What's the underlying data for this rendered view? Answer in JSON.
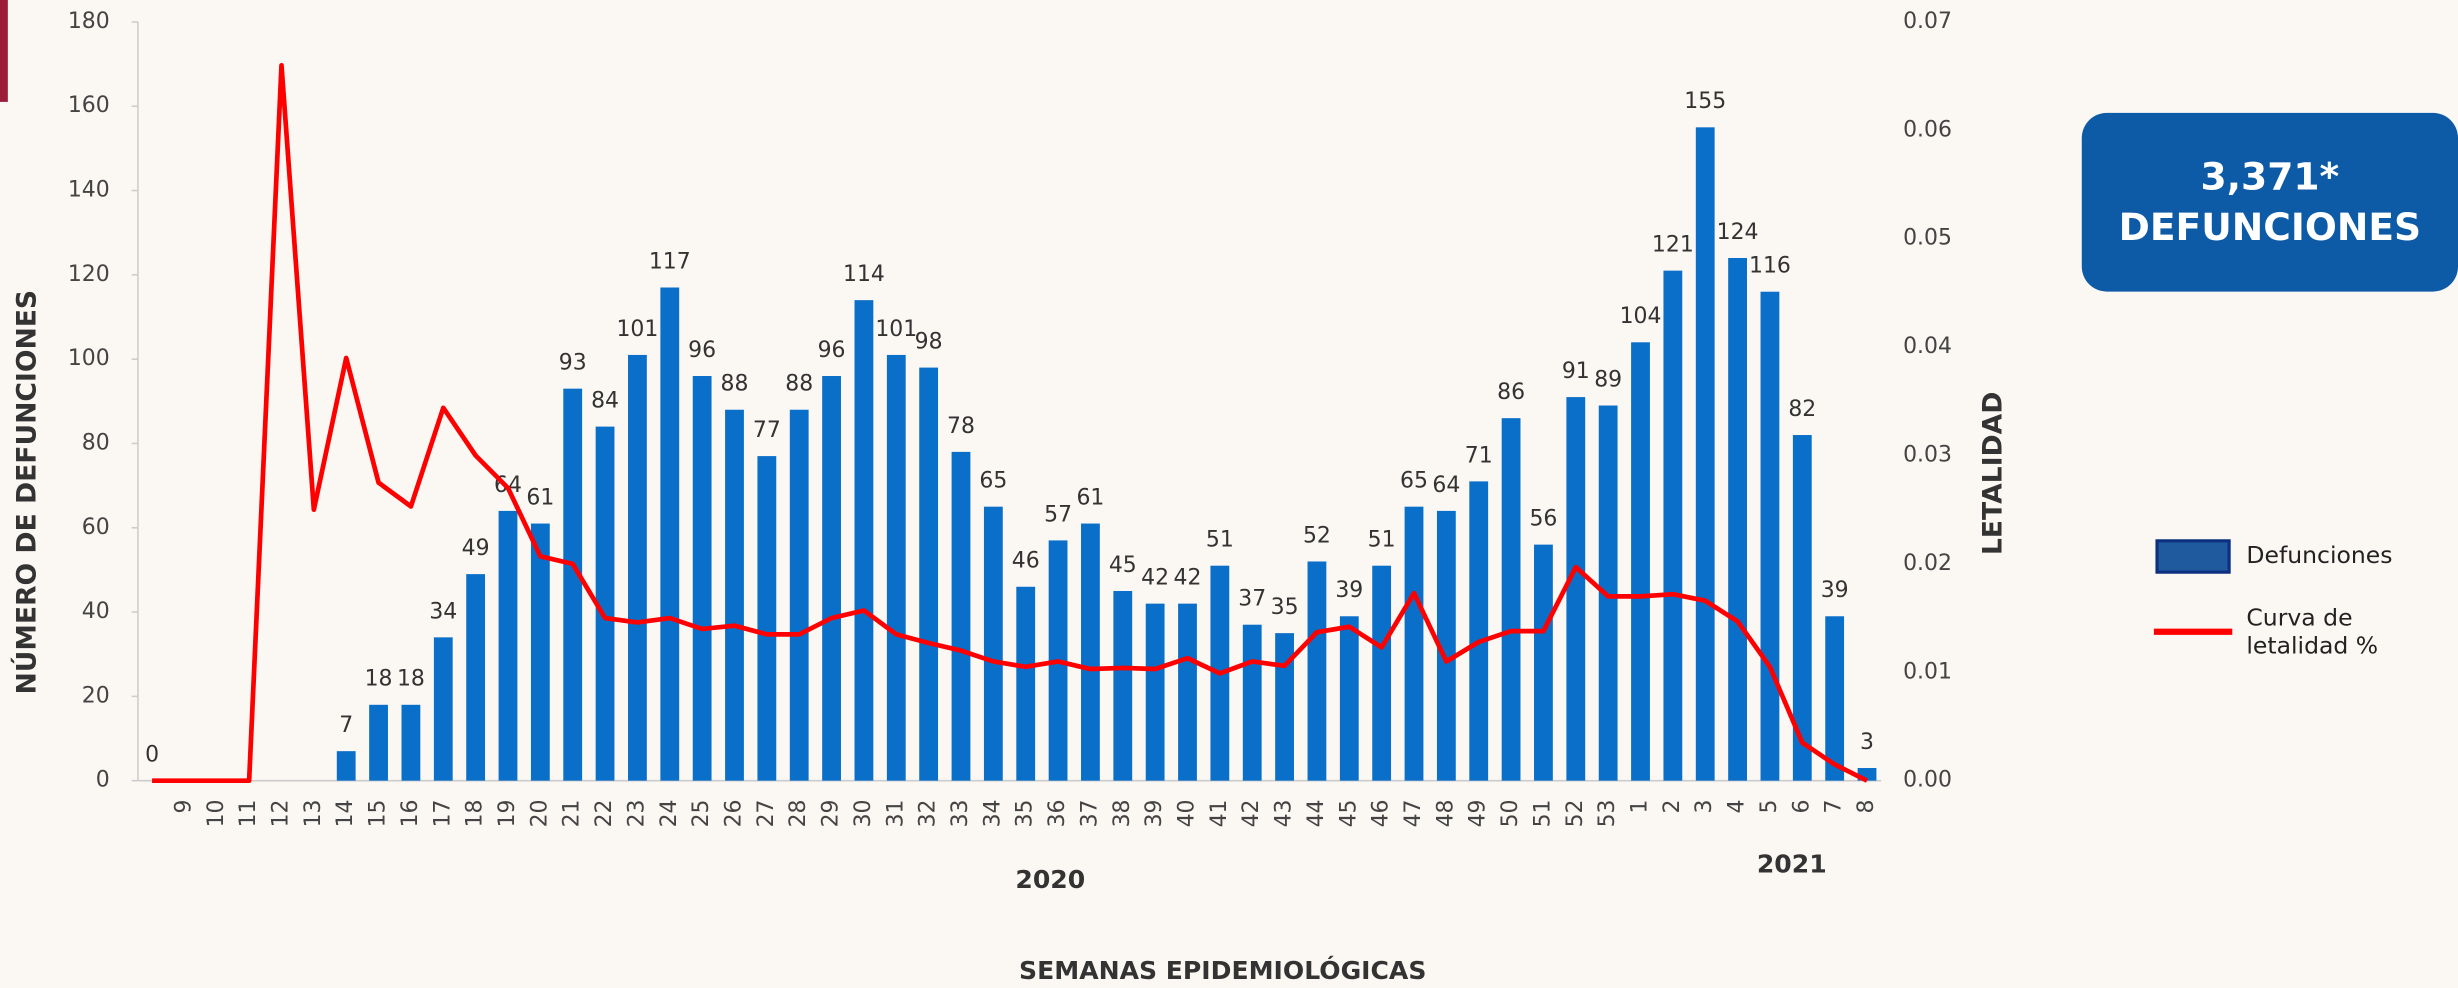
{
  "chart_data": {
    "type": "bar_line",
    "categories": [
      null,
      "9",
      "10",
      "11",
      "12",
      "13",
      "14",
      "15",
      "16",
      "17",
      "18",
      "19",
      "20",
      "21",
      "22",
      "23",
      "24",
      "25",
      "26",
      "27",
      "28",
      "29",
      "30",
      "31",
      "32",
      "33",
      "34",
      "35",
      "36",
      "37",
      "38",
      "39",
      "40",
      "41",
      "42",
      "43",
      "44",
      "45",
      "46",
      "47",
      "48",
      "49",
      "50",
      "51",
      "52",
      "53",
      "1",
      "2",
      "3",
      "4",
      "5",
      "6",
      "7",
      "8"
    ],
    "series": [
      {
        "name": "Defunciones",
        "color": "#0a6fc9",
        "axis": "y",
        "values": [
          0,
          null,
          null,
          null,
          null,
          null,
          7,
          18,
          18,
          34,
          49,
          64,
          61,
          93,
          84,
          101,
          117,
          96,
          88,
          77,
          88,
          96,
          114,
          101,
          98,
          78,
          65,
          46,
          57,
          61,
          45,
          42,
          42,
          51,
          37,
          35,
          52,
          39,
          51,
          65,
          64,
          71,
          86,
          56,
          91,
          89,
          104,
          121,
          155,
          124,
          116,
          82,
          39,
          3
        ]
      },
      {
        "name": "Curva de letalidad %",
        "color": "#ff0000",
        "axis": "y2",
        "values": [
          0,
          0,
          0,
          0,
          0.066,
          0.025,
          0.039,
          0.0275,
          0.0253,
          0.0344,
          0.03,
          0.027,
          0.0207,
          0.02,
          0.015,
          0.0146,
          0.015,
          0.014,
          0.0143,
          0.0135,
          0.0135,
          0.015,
          0.0157,
          0.0135,
          0.0127,
          0.012,
          0.011,
          0.0105,
          0.011,
          0.0103,
          0.0104,
          0.0103,
          0.0113,
          0.0099,
          0.011,
          0.0106,
          0.0137,
          0.0142,
          0.0123,
          0.0173,
          0.011,
          0.0128,
          0.0138,
          0.0138,
          0.0197,
          0.017,
          0.017,
          0.0172,
          0.0166,
          0.0147,
          0.0105,
          0.0035,
          0.0015,
          0
        ]
      }
    ],
    "ylim": [
      0,
      180
    ],
    "yticks": [
      0,
      20,
      40,
      60,
      80,
      100,
      120,
      140,
      160,
      180
    ],
    "y2lim": [
      0,
      0.07
    ],
    "y2ticks": [
      {
        "value": 0,
        "label": "0.00"
      },
      {
        "value": 0.01,
        "label": "0.01"
      },
      {
        "value": 0.02,
        "label": "0.02"
      },
      {
        "value": 0.03,
        "label": "0.03"
      },
      {
        "value": 0.04,
        "label": "0.04"
      },
      {
        "value": 0.05,
        "label": "0.05"
      },
      {
        "value": 0.06,
        "label": "0.06"
      },
      {
        "value": 0.07,
        "label": "0.07"
      }
    ],
    "year_labels": [
      "2020",
      "2021"
    ],
    "xlabel": "SEMANAS EPIDEMIOLÓGICAS",
    "ylabel": "NÚMERO DE DEFUNCIONES",
    "y2label": "LETALIDAD",
    "total_box": [
      "3,371*",
      "DEFUNCIONES"
    ]
  }
}
